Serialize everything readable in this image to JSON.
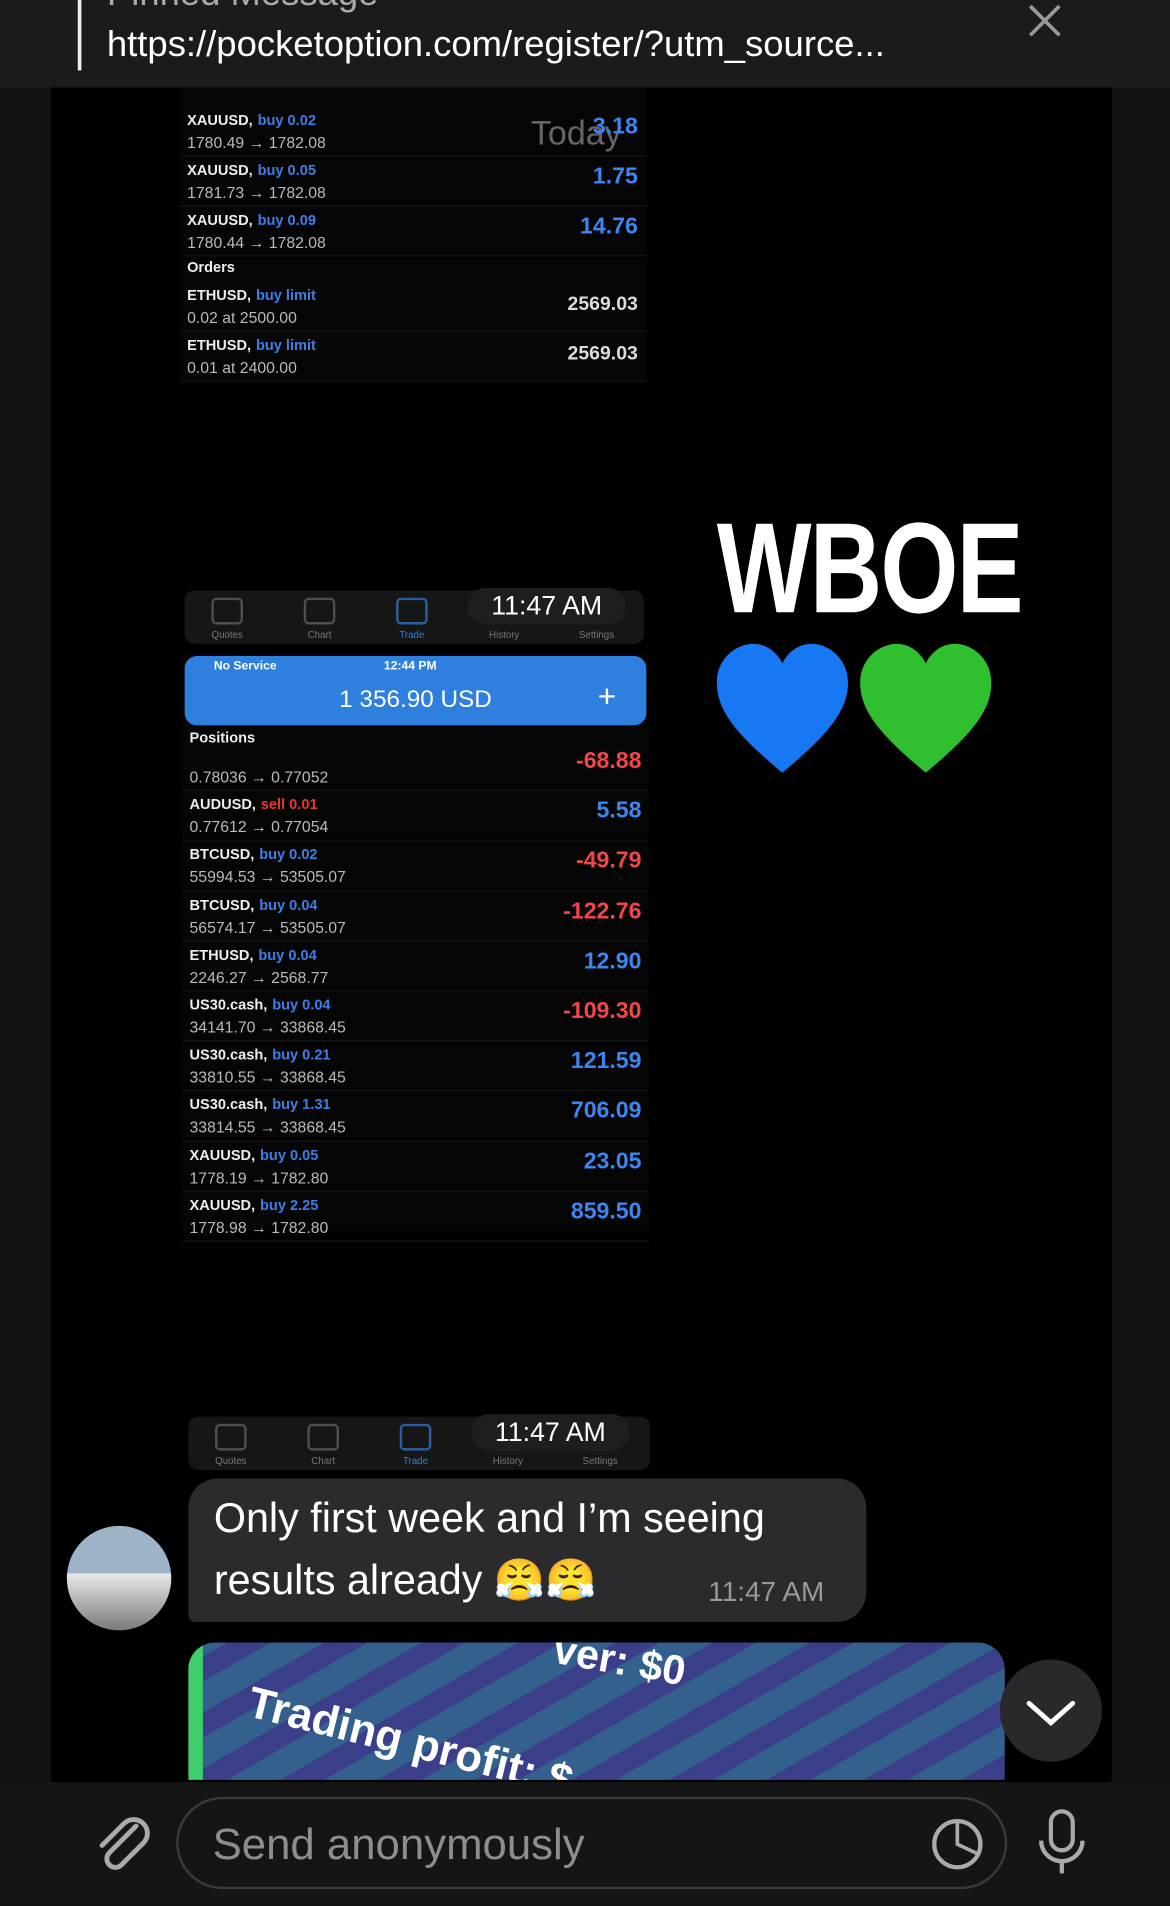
{
  "header": {
    "title": "Pinned Message",
    "url": "https://pocketoption.com/register/?utm_source..."
  },
  "screenshot_1": {
    "today": "Today",
    "rows": [
      {
        "symbol": "XAUUSD,",
        "side": "buy 0.02",
        "prices": "1780.49 → 1782.08",
        "profit": "3.18"
      },
      {
        "symbol": "XAUUSD,",
        "side": "buy 0.05",
        "prices": "1781.73 → 1782.08",
        "profit": "1.75"
      },
      {
        "symbol": "XAUUSD,",
        "side": "buy 0.09",
        "prices": "1780.44 → 1782.08",
        "profit": "14.76"
      }
    ],
    "orders_label": "Orders",
    "orders": [
      {
        "symbol": "ETHUSD,",
        "side": "buy limit",
        "prices": "0.02 at 2500.00",
        "price": "2569.03"
      },
      {
        "symbol": "ETHUSD,",
        "side": "buy limit",
        "prices": "0.01 at 2400.00",
        "price": "2569.03"
      }
    ]
  },
  "tab_bar_1": {
    "tabs": [
      "Quotes",
      "Chart",
      "Trade",
      "History",
      "Settings"
    ],
    "time": "11:47 AM"
  },
  "screenshot_2": {
    "status_left": "No Service",
    "status_time": "12:44 PM",
    "balance": "1 356.90 USD",
    "positions_label": "Positions",
    "rows": [
      {
        "symbol": null,
        "side": null,
        "prices": "0.78036 → 0.77052",
        "profit": "-68.88"
      },
      {
        "symbol": "AUDUSD,",
        "side": "sell 0.01",
        "prices": "0.77612 → 0.77054",
        "profit": "5.58"
      },
      {
        "symbol": "BTCUSD,",
        "side": "buy 0.02",
        "prices": "55994.53 → 53505.07",
        "profit": "-49.79"
      },
      {
        "symbol": "BTCUSD,",
        "side": "buy 0.04",
        "prices": "56574.17 → 53505.07",
        "profit": "-122.76"
      },
      {
        "symbol": "ETHUSD,",
        "side": "buy 0.04",
        "prices": "2246.27 → 2568.77",
        "profit": "12.90"
      },
      {
        "symbol": "US30.cash,",
        "side": "buy 0.04",
        "prices": "34141.70 → 33868.45",
        "profit": "-109.30"
      },
      {
        "symbol": "US30.cash,",
        "side": "buy 0.21",
        "prices": "33810.55 → 33868.45",
        "profit": "121.59"
      },
      {
        "symbol": "US30.cash,",
        "side": "buy 1.31",
        "prices": "33814.55 → 33868.45",
        "profit": "706.09"
      },
      {
        "symbol": "XAUUSD,",
        "side": "buy 0.05",
        "prices": "1778.19 → 1782.80",
        "profit": "23.05"
      },
      {
        "symbol": "XAUUSD,",
        "side": "buy 2.25",
        "prices": "1778.98 → 1782.80",
        "profit": "859.50"
      }
    ]
  },
  "tab_bar_2": {
    "tabs": [
      "Quotes",
      "Chart",
      "Trade",
      "History",
      "Settings"
    ],
    "time": "11:47 AM"
  },
  "sticker_text": "WBOE",
  "message": {
    "line_1": "Only first week and I’m seeing",
    "line_2": "results already 😤😤",
    "time": "11:47 AM"
  },
  "image_preview": {
    "text_1": "ver: $0",
    "text_2": "Trading profit: $"
  },
  "input": {
    "placeholder": "Send anonymously"
  }
}
